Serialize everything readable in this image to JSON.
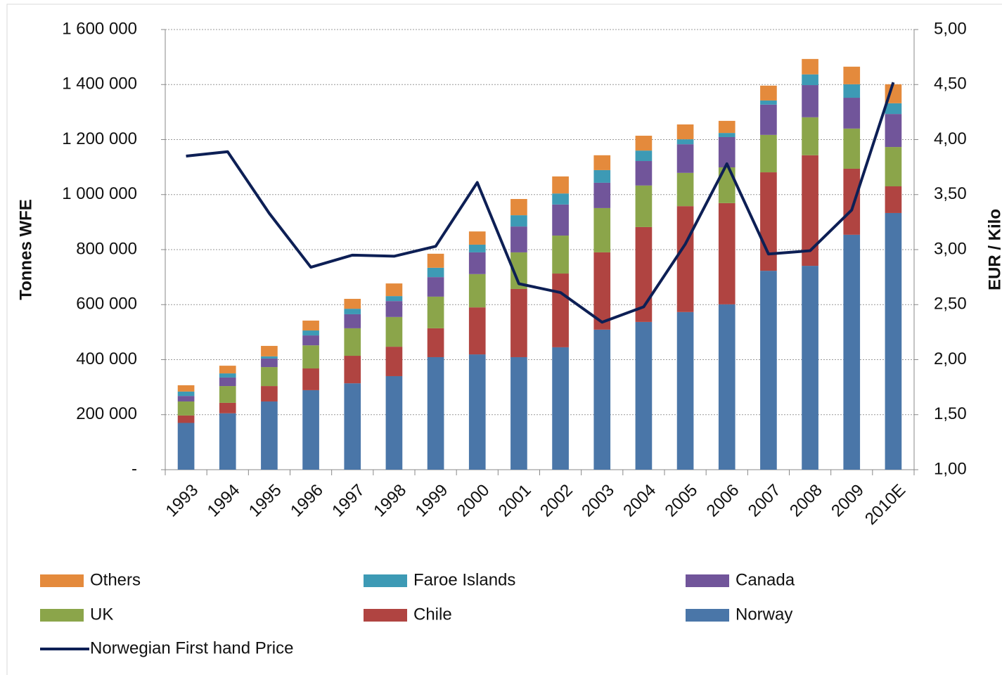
{
  "chart_data": {
    "type": "bar",
    "stacked": true,
    "ylabel": "Tonnes WFE",
    "y2label": "EUR / Kilo",
    "categories": [
      "1993",
      "1994",
      "1995",
      "1996",
      "1997",
      "1998",
      "1999",
      "2000",
      "2001",
      "2002",
      "2003",
      "2004",
      "2005",
      "2006",
      "2007",
      "2008",
      "2009",
      "2010E"
    ],
    "ylim": [
      0,
      1600000
    ],
    "yticks": [
      {
        "value": 0,
        "label": "-"
      },
      {
        "value": 200000,
        "label": "200 000"
      },
      {
        "value": 400000,
        "label": "400 000"
      },
      {
        "value": 600000,
        "label": "600 000"
      },
      {
        "value": 800000,
        "label": "800 000"
      },
      {
        "value": 1000000,
        "label": "1 000 000"
      },
      {
        "value": 1200000,
        "label": "1 200 000"
      },
      {
        "value": 1400000,
        "label": "1 400 000"
      },
      {
        "value": 1600000,
        "label": "1 600 000"
      }
    ],
    "y2lim": [
      1,
      5
    ],
    "y2ticks": [
      {
        "value": 1,
        "label": "1,00"
      },
      {
        "value": 1.5,
        "label": "1,50"
      },
      {
        "value": 2,
        "label": "2,00"
      },
      {
        "value": 2.5,
        "label": "2,50"
      },
      {
        "value": 3,
        "label": "3,00"
      },
      {
        "value": 3.5,
        "label": "3,50"
      },
      {
        "value": 4,
        "label": "4,00"
      },
      {
        "value": 4.5,
        "label": "4,50"
      },
      {
        "value": 5,
        "label": "5,00"
      }
    ],
    "grid": true,
    "series": [
      {
        "name": "Norway",
        "color": "#4a76a8",
        "values": [
          170000,
          205000,
          248000,
          289000,
          314000,
          340000,
          409000,
          419000,
          409000,
          445000,
          509000,
          537000,
          573000,
          601000,
          723000,
          741000,
          854000,
          933000
        ]
      },
      {
        "name": "Chile",
        "color": "#b04441",
        "values": [
          27000,
          38000,
          56000,
          79000,
          100000,
          107000,
          105000,
          171000,
          248000,
          268000,
          281000,
          345000,
          385000,
          368000,
          358000,
          402000,
          240000,
          97000
        ]
      },
      {
        "name": "UK",
        "color": "#8ba54a",
        "values": [
          51000,
          61000,
          69000,
          84000,
          100000,
          108000,
          115000,
          121000,
          133000,
          138000,
          161000,
          151000,
          121000,
          130000,
          136000,
          138000,
          146000,
          143000
        ]
      },
      {
        "name": "Canada",
        "color": "#71559a",
        "values": [
          20000,
          31000,
          31000,
          36000,
          51000,
          58000,
          71000,
          79000,
          94000,
          113000,
          92000,
          89000,
          104000,
          110000,
          110000,
          117000,
          112000,
          120000
        ]
      },
      {
        "name": "Faroe Islands",
        "color": "#3d9ab5",
        "values": [
          16000,
          15000,
          8000,
          18000,
          20000,
          18000,
          34000,
          28000,
          41000,
          40000,
          46000,
          38000,
          18000,
          15000,
          15000,
          39000,
          49000,
          39000
        ]
      },
      {
        "name": "Others",
        "color": "#e48a3c",
        "values": [
          23000,
          28000,
          38000,
          36000,
          36000,
          46000,
          51000,
          48000,
          59000,
          62000,
          54000,
          54000,
          54000,
          44000,
          54000,
          56000,
          64000,
          69000
        ]
      },
      {
        "name": "Norwegian First hand Price",
        "color": "#0d1f55",
        "type": "line",
        "axis": "y2",
        "values": [
          3.85,
          3.89,
          3.33,
          2.84,
          2.95,
          2.94,
          3.03,
          3.61,
          2.69,
          2.61,
          2.34,
          2.48,
          3.05,
          3.78,
          2.96,
          2.99,
          3.36,
          4.52
        ]
      }
    ]
  }
}
